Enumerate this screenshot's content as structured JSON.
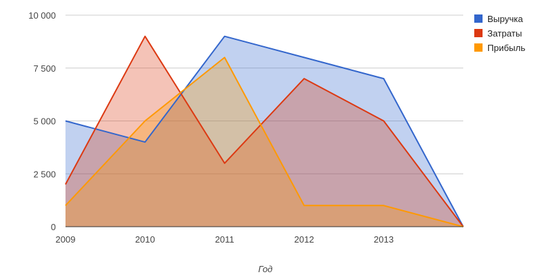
{
  "chart_data": {
    "type": "area",
    "x": [
      "2009",
      "2010",
      "2011",
      "2012",
      "2013",
      ""
    ],
    "x_tick_labels": [
      "2009",
      "2010",
      "2011",
      "2012",
      "2013"
    ],
    "y_tick_labels": [
      "0",
      "2 500",
      "5 000",
      "7 500",
      "10 000"
    ],
    "y_ticks": [
      0,
      2500,
      5000,
      7500,
      10000
    ],
    "ylim": [
      0,
      10000
    ],
    "xlabel": "Год",
    "ylabel": "",
    "grid": true,
    "legend_position": "right",
    "series": [
      {
        "name": "Выручка",
        "color": "#3366cc",
        "values": [
          5000,
          4000,
          9000,
          8000,
          7000,
          0
        ]
      },
      {
        "name": "Затраты",
        "color": "#dc3912",
        "values": [
          2000,
          9000,
          3000,
          7000,
          5000,
          0
        ]
      },
      {
        "name": "Прибыль",
        "color": "#ff9900",
        "values": [
          1000,
          5000,
          8000,
          1000,
          1000,
          0
        ]
      }
    ]
  }
}
